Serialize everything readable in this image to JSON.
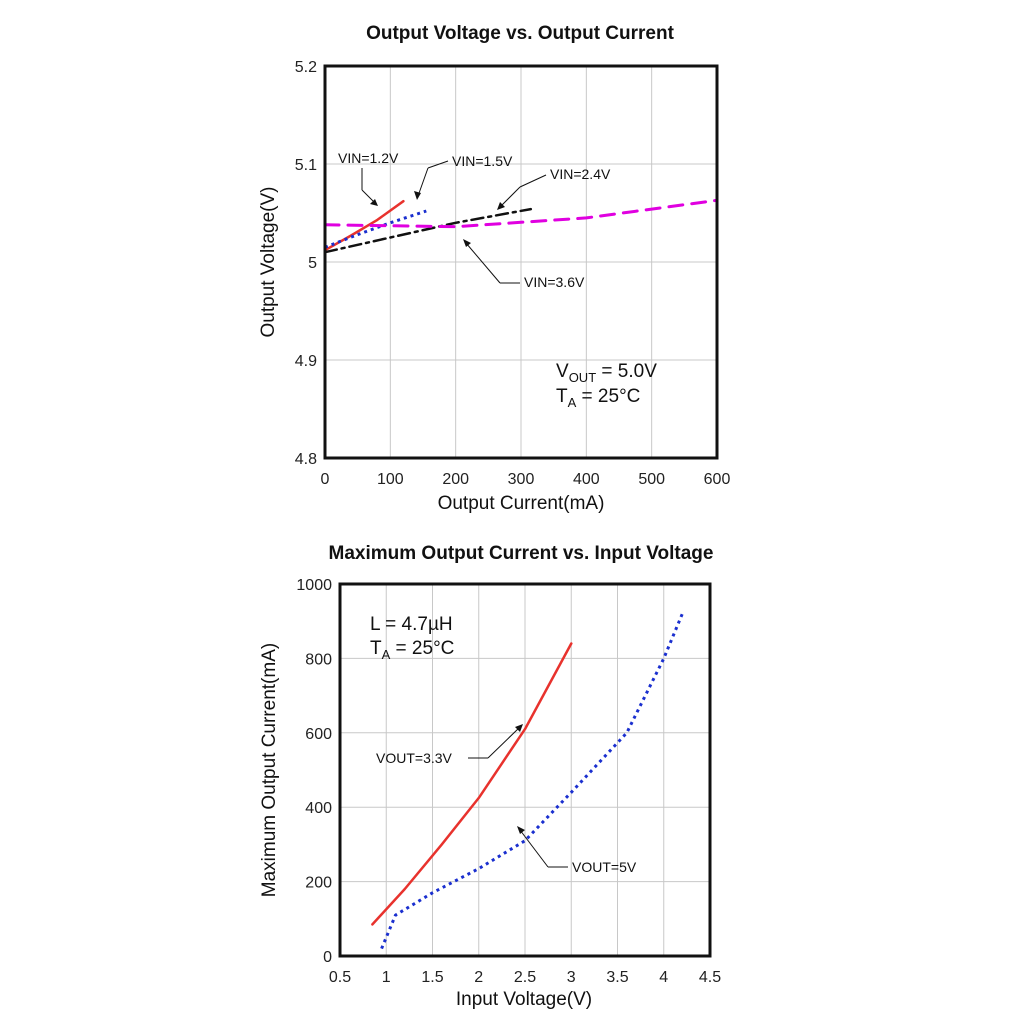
{
  "colors": {
    "red": "#e8322d",
    "blue": "#1a2fcf",
    "black": "#111111",
    "magenta": "#e000e0"
  },
  "chart_data": [
    {
      "type": "line",
      "title": "Output Voltage vs. Output Current",
      "xlabel": "Output Current(mA)",
      "ylabel": "Output Voltage(V)",
      "xlim": [
        0,
        600
      ],
      "ylim": [
        4.8,
        5.2
      ],
      "xticks": [
        "0",
        "100",
        "200",
        "300",
        "400",
        "500",
        "600"
      ],
      "yticks": [
        "4.8",
        "4.9",
        "5",
        "5.1",
        "5.2"
      ],
      "grid": true,
      "conditions": {
        "line1_main": "V",
        "line1_sub": "OUT",
        "line1_rest": " = 5.0V",
        "line2_main": "T",
        "line2_sub": "A",
        "line2_rest": " = 25°C"
      },
      "series": [
        {
          "name": "VIN=1.2V",
          "style": "solid",
          "color": "red",
          "x": [
            0,
            40,
            80,
            120
          ],
          "y": [
            5.012,
            5.027,
            5.043,
            5.062
          ]
        },
        {
          "name": "VIN=1.5V",
          "style": "dotted",
          "color": "blue",
          "x": [
            0,
            50,
            100,
            155
          ],
          "y": [
            5.015,
            5.028,
            5.04,
            5.052
          ]
        },
        {
          "name": "VIN=2.4V",
          "style": "dashdot",
          "color": "black",
          "x": [
            0,
            100,
            200,
            315
          ],
          "y": [
            5.01,
            5.025,
            5.04,
            5.054
          ]
        },
        {
          "name": "VIN=3.6V",
          "style": "dashed",
          "color": "magenta",
          "x": [
            0,
            200,
            400,
            600
          ],
          "y": [
            5.038,
            5.036,
            5.045,
            5.063
          ]
        }
      ]
    },
    {
      "type": "line",
      "title": "Maximum Output Current vs. Input Voltage",
      "xlabel": "Input Voltage(V)",
      "ylabel": "Maximum Output Current(mA)",
      "xlim": [
        0.5,
        4.5
      ],
      "ylim": [
        0,
        1000
      ],
      "xticks": [
        "0.5",
        "1",
        "1.5",
        "2",
        "2.5",
        "3",
        "3.5",
        "4",
        "4.5"
      ],
      "yticks": [
        "0",
        "200",
        "400",
        "600",
        "800",
        "1000"
      ],
      "grid": true,
      "conditions": {
        "line1_main": "L = 4.7",
        "line1_mu": "µ",
        "line1_rest": "H",
        "line2_main": "T",
        "line2_sub": "A",
        "line2_rest": " = 25°C"
      },
      "series": [
        {
          "name": "VOUT=3.3V",
          "style": "solid",
          "color": "red",
          "x": [
            0.85,
            1.2,
            1.6,
            2.0,
            2.5,
            3.0
          ],
          "y": [
            85,
            180,
            300,
            425,
            610,
            840
          ]
        },
        {
          "name": "VOUT=5V",
          "style": "dotted",
          "color": "blue",
          "x": [
            0.95,
            1.1,
            1.5,
            2.0,
            2.5,
            3.0,
            3.6,
            4.0,
            4.2
          ],
          "y": [
            20,
            110,
            170,
            235,
            310,
            440,
            600,
            800,
            920
          ]
        }
      ]
    }
  ]
}
